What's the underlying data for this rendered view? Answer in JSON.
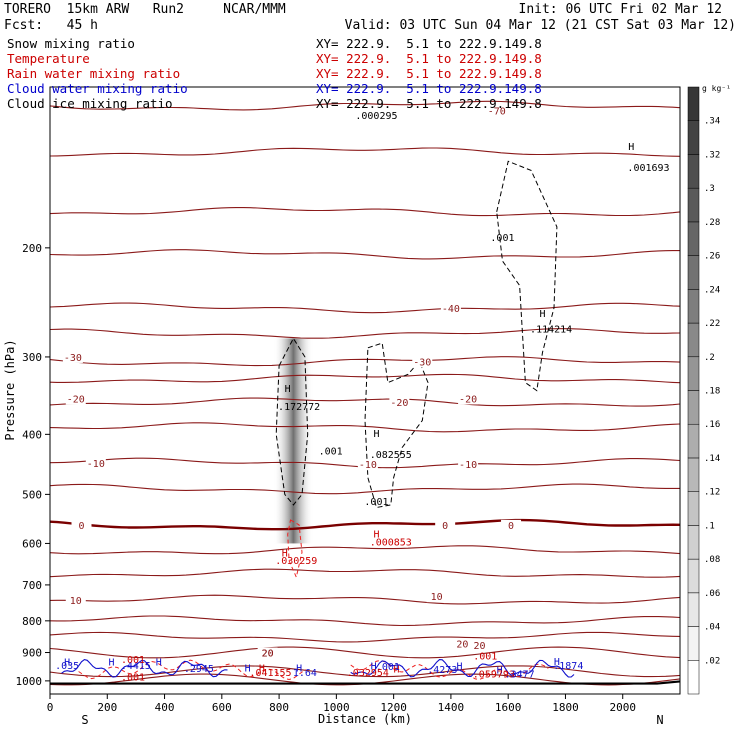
{
  "header": {
    "model_line": "TORERO  15km ARW   Run2     NCAR/MMM",
    "init_line": "Init: 06 UTC Fri 02 Mar 12",
    "fcst_line": "Fcst:   45 h",
    "valid_line": "Valid: 03 UTC Sun 04 Mar 12 (21 CST Sat 03 Mar 12)"
  },
  "fields": [
    {
      "name": "Snow mixing ratio",
      "xy": "XY= 222.9.  5.1 to 222.9.149.8",
      "color": "#000000"
    },
    {
      "name": "Temperature",
      "xy": "XY= 222.9.  5.1 to 222.9.149.8",
      "color": "#cc0000"
    },
    {
      "name": "Rain water mixing ratio",
      "xy": "XY= 222.9.  5.1 to 222.9.149.8",
      "color": "#cc0000"
    },
    {
      "name": "Cloud water mixing ratio",
      "xy": "XY= 222.9.  5.1 to 222.9.149.8",
      "color": "#0000cc"
    },
    {
      "name": "Cloud ice mixing ratio",
      "xy": "XY= 222.9.  5.1 to 222.9.149.8",
      "color": "#000000"
    }
  ],
  "colors": {
    "temperature": "#8b1a1a",
    "rain": "#ee2222",
    "cloud_water": "#1111cc",
    "ice_snow": "#000000",
    "zero_isotherm": "#7a0000"
  },
  "chart_data": {
    "type": "contour",
    "xlabel": "Distance (km)",
    "ylabel": "Pressure (hPa)",
    "xlim": [
      0,
      2200
    ],
    "ylim": [
      1050,
      110
    ],
    "y_log_scale": true,
    "grid": false,
    "x_ticks": [
      0,
      200,
      400,
      600,
      800,
      1000,
      1200,
      1400,
      1600,
      1800,
      2000
    ],
    "y_ticks": [
      200,
      300,
      400,
      500,
      600,
      700,
      800,
      900,
      1000
    ],
    "x_end_labels": {
      "left": "S",
      "right": "N"
    },
    "colorbar": {
      "unit": "g kg⁻¹",
      "levels": [
        0.02,
        0.04,
        0.06,
        0.08,
        0.1,
        0.12,
        0.14,
        0.16,
        0.18,
        0.2,
        0.22,
        0.24,
        0.26,
        0.28,
        0.3,
        0.32,
        0.34
      ],
      "tick_labels": [
        ".02",
        ".04",
        ".06",
        ".08",
        ".1",
        ".12",
        ".14",
        ".16",
        ".18",
        ".2",
        ".22",
        ".24",
        ".26",
        ".28",
        ".3",
        ".32",
        ".34"
      ]
    },
    "snow_shading": {
      "x_center": 850,
      "p_top": 280,
      "p_bottom": 600,
      "max": 0.34
    },
    "temperature_isotherms": [
      {
        "value": -70,
        "label": "-70",
        "label_x": 1560,
        "label_p": 120
      },
      {
        "value": -40,
        "label": "-40",
        "label_x": 1400,
        "label_p": 250
      },
      {
        "value": -30,
        "label": "-30",
        "label_x": 80,
        "label_p": 300
      },
      {
        "value": -30,
        "label": "-30",
        "label_x": 1300,
        "label_p": 305
      },
      {
        "value": -20,
        "label": "-20",
        "label_x": 90,
        "label_p": 350
      },
      {
        "value": -20,
        "label": "-20",
        "label_x": 1220,
        "label_p": 355
      },
      {
        "value": -20,
        "label": "-20",
        "label_x": 1460,
        "label_p": 350
      },
      {
        "value": -10,
        "label": "-10",
        "label_x": 160,
        "label_p": 445
      },
      {
        "value": -10,
        "label": "-10",
        "label_x": 1110,
        "label_p": 447
      },
      {
        "value": -10,
        "label": "-10",
        "label_x": 1460,
        "label_p": 447
      },
      {
        "value": 0,
        "label": "0",
        "label_x": 110,
        "label_p": 560
      },
      {
        "value": 0,
        "label": "0",
        "label_x": 1380,
        "label_p": 560
      },
      {
        "value": 0,
        "label": "0",
        "label_x": 1610,
        "label_p": 560
      },
      {
        "value": 10,
        "label": "10",
        "label_x": 90,
        "label_p": 740
      },
      {
        "value": 10,
        "label": "10",
        "label_x": 1350,
        "label_p": 730
      },
      {
        "value": 20,
        "label": "20",
        "label_x": 760,
        "label_p": 900
      },
      {
        "value": 20,
        "label": "20",
        "label_x": 1440,
        "label_p": 870
      },
      {
        "value": 20,
        "label": "20",
        "label_x": 1500,
        "label_p": 875
      }
    ],
    "annotations": [
      {
        "text": "H",
        "x": 2030,
        "p": 137,
        "color": "#000000"
      },
      {
        "text": ".001693",
        "x": 2090,
        "p": 148,
        "color": "#000000"
      },
      {
        "text": ".001",
        "x": 1580,
        "p": 192,
        "color": "#000000"
      },
      {
        "text": "H",
        "x": 1720,
        "p": 255,
        "color": "#000000"
      },
      {
        "text": ".114214",
        "x": 1750,
        "p": 270,
        "color": "#000000"
      },
      {
        "text": "H",
        "x": 830,
        "p": 337,
        "color": "#000000"
      },
      {
        "text": ".172772",
        "x": 870,
        "p": 360,
        "color": "#000000"
      },
      {
        "text": ".001",
        "x": 980,
        "p": 425,
        "color": "#000000"
      },
      {
        "text": "H",
        "x": 1140,
        "p": 398,
        "color": "#000000"
      },
      {
        "text": ".082555",
        "x": 1190,
        "p": 430,
        "color": "#000000"
      },
      {
        "text": ".001",
        "x": 1140,
        "p": 512,
        "color": "#000000"
      },
      {
        "text": "H",
        "x": 1140,
        "p": 578,
        "color": "#cc0000"
      },
      {
        "text": ".000853",
        "x": 1190,
        "p": 596,
        "color": "#cc0000"
      },
      {
        "text": "H",
        "x": 820,
        "p": 620,
        "color": "#cc0000"
      },
      {
        "text": ".030259",
        "x": 860,
        "p": 638,
        "color": "#cc0000"
      },
      {
        "text": ".000295",
        "x": 1140,
        "p": 122,
        "color": "#000000"
      },
      {
        "text": "H",
        "x": 60,
        "p": 930,
        "color": "#1111cc"
      },
      {
        "text": "H",
        "x": 215,
        "p": 930,
        "color": "#1111cc"
      },
      {
        "text": "H",
        "x": 380,
        "p": 930,
        "color": "#1111cc"
      },
      {
        "text": "H",
        "x": 1130,
        "p": 945,
        "color": "#1111cc"
      },
      {
        "text": "H",
        "x": 1430,
        "p": 945,
        "color": "#1111cc"
      },
      {
        "text": "H",
        "x": 1770,
        "p": 928,
        "color": "#1111cc"
      },
      {
        "text": "H",
        "x": 690,
        "p": 952,
        "color": "#1111cc"
      },
      {
        "text": "H",
        "x": 870,
        "p": 952,
        "color": "#1111cc"
      },
      {
        "text": "H",
        "x": 1570,
        "p": 958,
        "color": "#1111cc"
      },
      {
        "text": "H",
        "x": 740,
        "p": 952,
        "color": "#cc0000"
      },
      {
        "text": "H",
        "x": 1210,
        "p": 955,
        "color": "#cc0000"
      },
      {
        "text": ".035",
        "x": 60,
        "p": 943,
        "color": "#1111cc"
      },
      {
        "text": ".4415",
        "x": 300,
        "p": 943,
        "color": "#1111cc"
      },
      {
        "text": ".2945",
        "x": 520,
        "p": 953,
        "color": "#1111cc"
      },
      {
        "text": ".041155",
        "x": 770,
        "p": 968,
        "color": "#cc0000"
      },
      {
        "text": "1.64",
        "x": 890,
        "p": 968,
        "color": "#1111cc"
      },
      {
        "text": ".001",
        "x": 1180,
        "p": 946,
        "color": "#1111cc"
      },
      {
        "text": ".032954",
        "x": 1110,
        "p": 968,
        "color": "#cc0000"
      },
      {
        "text": ".4273",
        "x": 1370,
        "p": 956,
        "color": "#1111cc"
      },
      {
        "text": ".059793",
        "x": 1550,
        "p": 973,
        "color": "#cc0000"
      },
      {
        "text": ".3477",
        "x": 1640,
        "p": 973,
        "color": "#1111cc"
      },
      {
        "text": ".1874",
        "x": 1810,
        "p": 943,
        "color": "#1111cc"
      },
      {
        "text": ".001",
        "x": 290,
        "p": 922,
        "color": "#cc0000"
      },
      {
        "text": ".001",
        "x": 290,
        "p": 983,
        "color": "#cc0000"
      },
      {
        "text": ".001",
        "x": 1520,
        "p": 910,
        "color": "#cc0000"
      },
      {
        "text": "20",
        "x": 760,
        "p": 900,
        "color": "#8b1a1a"
      }
    ]
  }
}
